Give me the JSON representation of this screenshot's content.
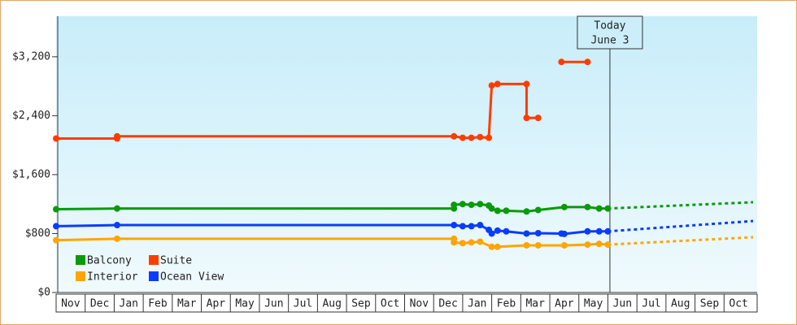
{
  "chart_data": {
    "type": "line",
    "categories": [
      "Nov",
      "Dec",
      "Jan",
      "Feb",
      "Mar",
      "Apr",
      "May",
      "Jun",
      "Jul",
      "Aug",
      "Sep",
      "Oct",
      "Nov",
      "Dec",
      "Jan",
      "Feb",
      "Mar",
      "Apr",
      "May",
      "Jun",
      "Jul",
      "Aug",
      "Sep",
      "Oct"
    ],
    "xlim": [
      0,
      24
    ],
    "ylim": [
      0,
      3750
    ],
    "yticks": [
      {
        "value": 0,
        "label": "$0"
      },
      {
        "value": 800,
        "label": "$800"
      },
      {
        "value": 1600,
        "label": "$1,600"
      },
      {
        "value": 2400,
        "label": "$2,400"
      },
      {
        "value": 3200,
        "label": "$3,200"
      }
    ],
    "today": {
      "label": "Today",
      "date": "June 3",
      "x": 19.07
    },
    "legend": "lower left",
    "series": [
      {
        "name": "Balcony",
        "color": "#0a9a0a",
        "x": [
          0,
          2.1,
          13.7,
          13.7,
          14.0,
          14.3,
          14.6,
          14.9,
          15.0,
          15.2,
          15.5,
          16.2,
          16.6,
          17.5,
          18.3,
          18.7,
          19.0
        ],
        "values": [
          1130,
          1140,
          1140,
          1190,
          1200,
          1190,
          1200,
          1180,
          1140,
          1110,
          1110,
          1100,
          1120,
          1160,
          1160,
          1140,
          1140
        ],
        "forecast": {
          "x": [
            19.0,
            24
          ],
          "values": [
            1140,
            1225
          ]
        }
      },
      {
        "name": "Suite",
        "color": "#ff3c00",
        "x": [
          0,
          2.1,
          2.1,
          13.7,
          14.0,
          14.3,
          14.6,
          14.9,
          15.0,
          15.2,
          16.2,
          16.2,
          16.6,
          17.0,
          17.4,
          18.3
        ],
        "values": [
          2090,
          2090,
          2120,
          2120,
          2100,
          2100,
          2110,
          2100,
          2810,
          2830,
          2830,
          2370,
          2370,
          null,
          3130,
          3130
        ]
      },
      {
        "name": "Interior",
        "color": "#ffa500",
        "x": [
          0,
          2.1,
          13.7,
          13.7,
          14.0,
          14.3,
          14.6,
          15.0,
          15.2,
          16.2,
          16.6,
          17.5,
          18.3,
          18.7,
          19.0
        ],
        "values": [
          710,
          730,
          730,
          680,
          670,
          680,
          690,
          620,
          620,
          640,
          640,
          640,
          650,
          660,
          650
        ],
        "forecast": {
          "x": [
            19.0,
            24
          ],
          "values": [
            650,
            750
          ]
        }
      },
      {
        "name": "Ocean View",
        "color": "#0a3cff",
        "x": [
          0,
          2.1,
          13.7,
          14.0,
          14.3,
          14.6,
          14.9,
          15.0,
          15.2,
          15.5,
          16.2,
          16.6,
          17.4,
          17.5,
          18.3,
          18.7,
          19.0
        ],
        "values": [
          900,
          915,
          915,
          900,
          900,
          915,
          850,
          800,
          840,
          830,
          800,
          805,
          800,
          795,
          830,
          830,
          830
        ],
        "forecast": {
          "x": [
            19.0,
            24
          ],
          "values": [
            830,
            970
          ]
        }
      }
    ]
  }
}
